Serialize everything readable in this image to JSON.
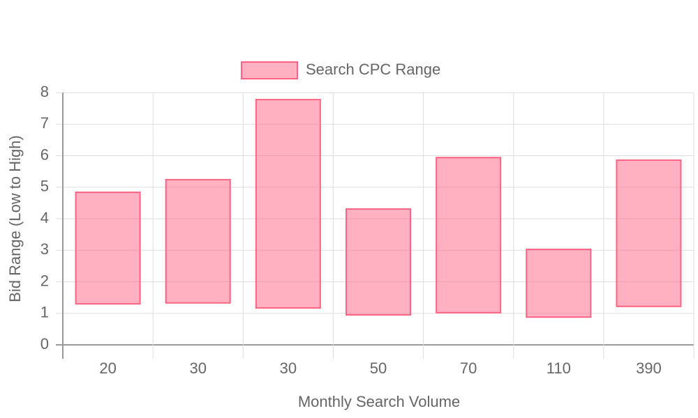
{
  "chart_data": {
    "type": "floating-bar",
    "x_label": "Monthly Search Volume",
    "y_label": "Bid Range (Low to High)",
    "categories": [
      "20",
      "30",
      "30",
      "50",
      "70",
      "110",
      "390"
    ],
    "series": [
      {
        "name": "Search CPC Range",
        "color": "#ff6384",
        "values": [
          [
            1.3,
            4.84
          ],
          [
            1.33,
            5.24
          ],
          [
            1.17,
            7.78
          ],
          [
            0.95,
            4.31
          ],
          [
            1.02,
            5.94
          ],
          [
            0.88,
            3.03
          ],
          [
            1.22,
            5.86
          ]
        ]
      }
    ],
    "ylim": [
      0,
      8
    ],
    "yticks": [
      0,
      1,
      2,
      3,
      4,
      5,
      6,
      7,
      8
    ],
    "grid": true,
    "legend": "top"
  }
}
